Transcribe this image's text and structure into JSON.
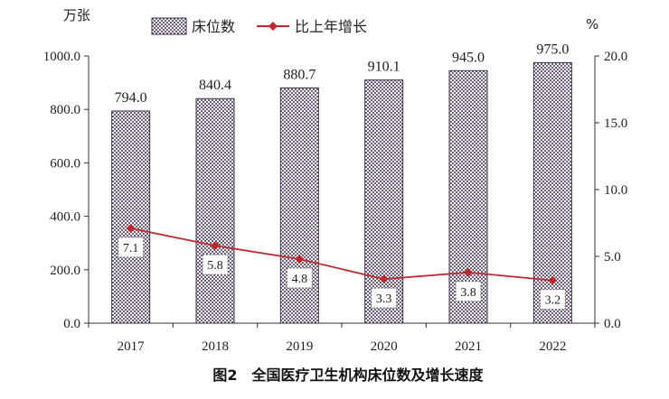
{
  "chart_data": {
    "type": "bar",
    "caption": "图2　全国医疗卫生机构床位数及增长速度",
    "left_unit": "万张",
    "right_unit": "%",
    "categories": [
      "2017",
      "2018",
      "2019",
      "2020",
      "2021",
      "2022"
    ],
    "series": [
      {
        "name": "床位数",
        "type": "bar",
        "axis": "left",
        "values": [
          794.0,
          840.4,
          880.7,
          910.1,
          945.0,
          975.0
        ],
        "labels": [
          "794.0",
          "840.4",
          "880.7",
          "910.1",
          "945.0",
          "975.0"
        ]
      },
      {
        "name": "比上年增长",
        "type": "line",
        "axis": "right",
        "values": [
          7.1,
          5.8,
          4.8,
          3.3,
          3.8,
          3.2
        ],
        "labels": [
          "7.1",
          "5.8",
          "4.8",
          "3.3",
          "3.8",
          "3.2"
        ]
      }
    ],
    "left_axis": {
      "min": 0,
      "max": 1000,
      "ticks": [
        "0.0",
        "200.0",
        "400.0",
        "600.0",
        "800.0",
        "1000.0"
      ]
    },
    "right_axis": {
      "min": 0,
      "max": 20,
      "ticks": [
        "0.0",
        "5.0",
        "10.0",
        "15.0",
        "20.0"
      ]
    },
    "legend_position": "top",
    "grid": false,
    "colors": {
      "bar_fill": "#9a8cad",
      "bar_pattern": "#5d4f73",
      "bar_stroke": "#3a3348",
      "line": "#c0282e",
      "marker": "#c0282e"
    }
  }
}
